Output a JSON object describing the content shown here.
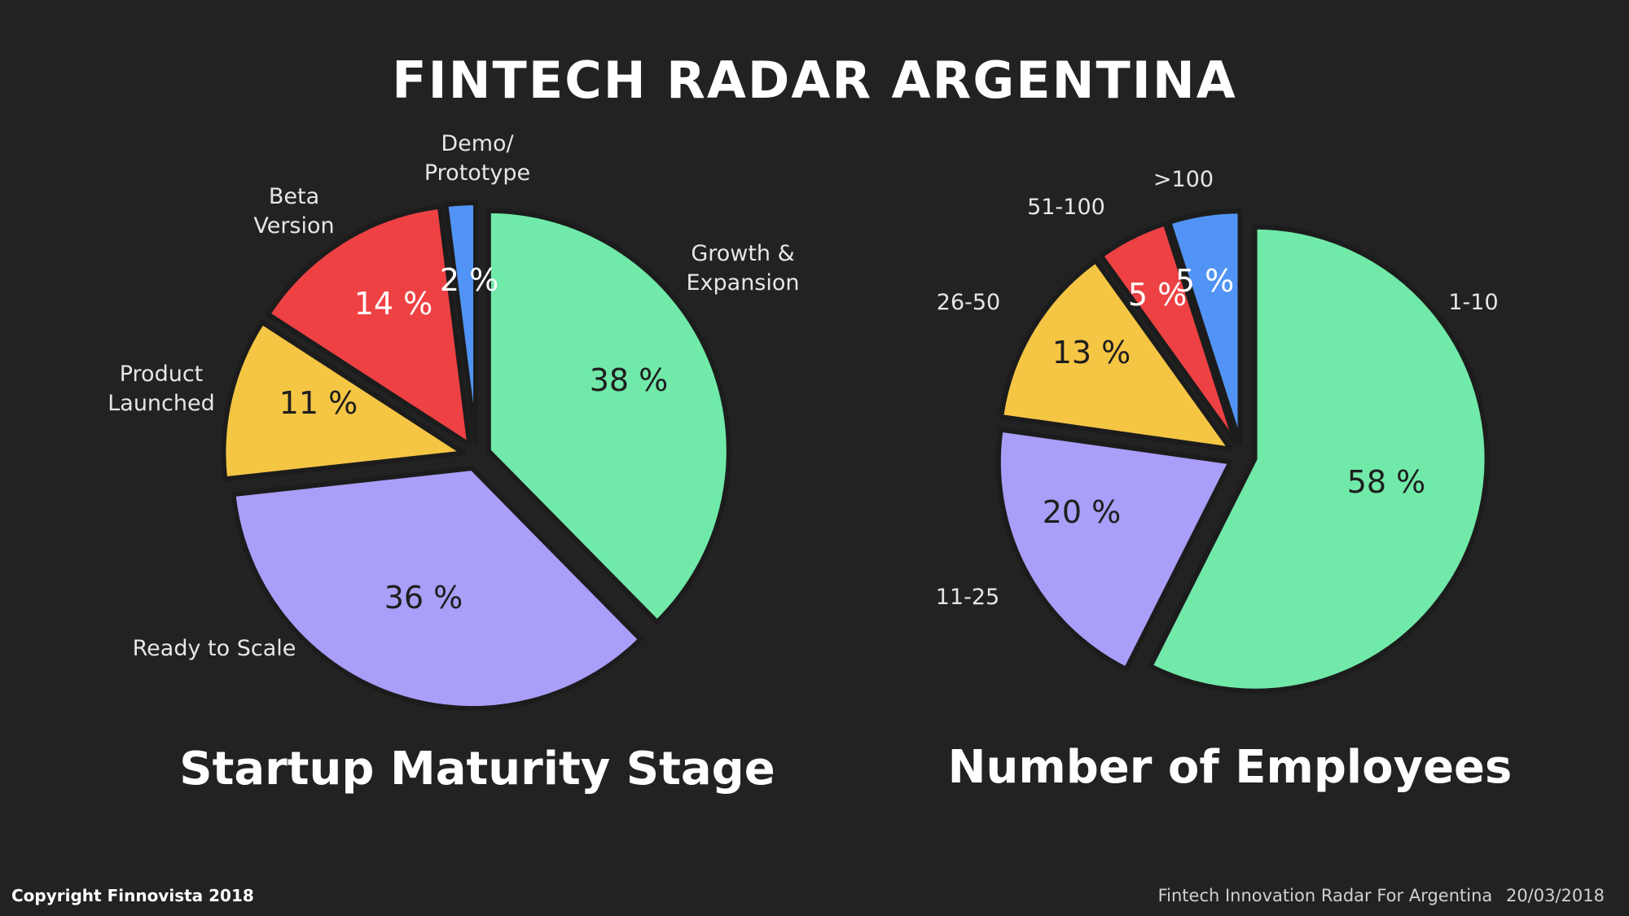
{
  "header": {
    "title": "FINTECH RADAR ARGENTINA"
  },
  "chart_data": [
    {
      "type": "pie",
      "title": "Startup Maturity Stage",
      "slices": [
        {
          "label": "Growth & Expansion",
          "value": 38,
          "pct_label": "38 %",
          "color": "#71e9a9",
          "label_lines": [
            "Growth &",
            "Expansion"
          ]
        },
        {
          "label": "Ready to Scale",
          "value": 36,
          "pct_label": "36 %",
          "color": "#a99ef8",
          "label_lines": [
            "Ready to Scale"
          ]
        },
        {
          "label": "Product Launched",
          "value": 11,
          "pct_label": "11 %",
          "color": "#f5c544",
          "label_lines": [
            "Product",
            "Launched"
          ]
        },
        {
          "label": "Beta Version",
          "value": 14,
          "pct_label": "14 %",
          "color": "#ee4143",
          "label_lines": [
            "Beta",
            "Version"
          ]
        },
        {
          "label": "Demo/ Prototype",
          "value": 2,
          "pct_label": "2 %",
          "color": "#5294f5",
          "label_lines": [
            "Demo/",
            "Prototype"
          ]
        }
      ]
    },
    {
      "type": "pie",
      "title": "Number of Employees",
      "slices": [
        {
          "label": "1-10",
          "value": 58,
          "pct_label": "58 %",
          "color": "#71e9a9",
          "label_lines": [
            "1-10"
          ]
        },
        {
          "label": "11-25",
          "value": 20,
          "pct_label": "20 %",
          "color": "#a99ef8",
          "label_lines": [
            "11-25"
          ]
        },
        {
          "label": "26-50",
          "value": 13,
          "pct_label": "13 %",
          "color": "#f5c544",
          "label_lines": [
            "26-50"
          ]
        },
        {
          "label": "51-100",
          "value": 5,
          "pct_label": "5 %",
          "color": "#ee4143",
          "label_lines": [
            "51-100"
          ]
        },
        {
          "label": ">100",
          "value": 5,
          "pct_label": "5 %",
          "color": "#5294f5",
          "label_lines": [
            ">100"
          ]
        }
      ]
    }
  ],
  "footer": {
    "copyright": "Copyright Finnovista 2018",
    "source": "Fintech Innovation Radar For Argentina",
    "date": "20/03/2018"
  }
}
